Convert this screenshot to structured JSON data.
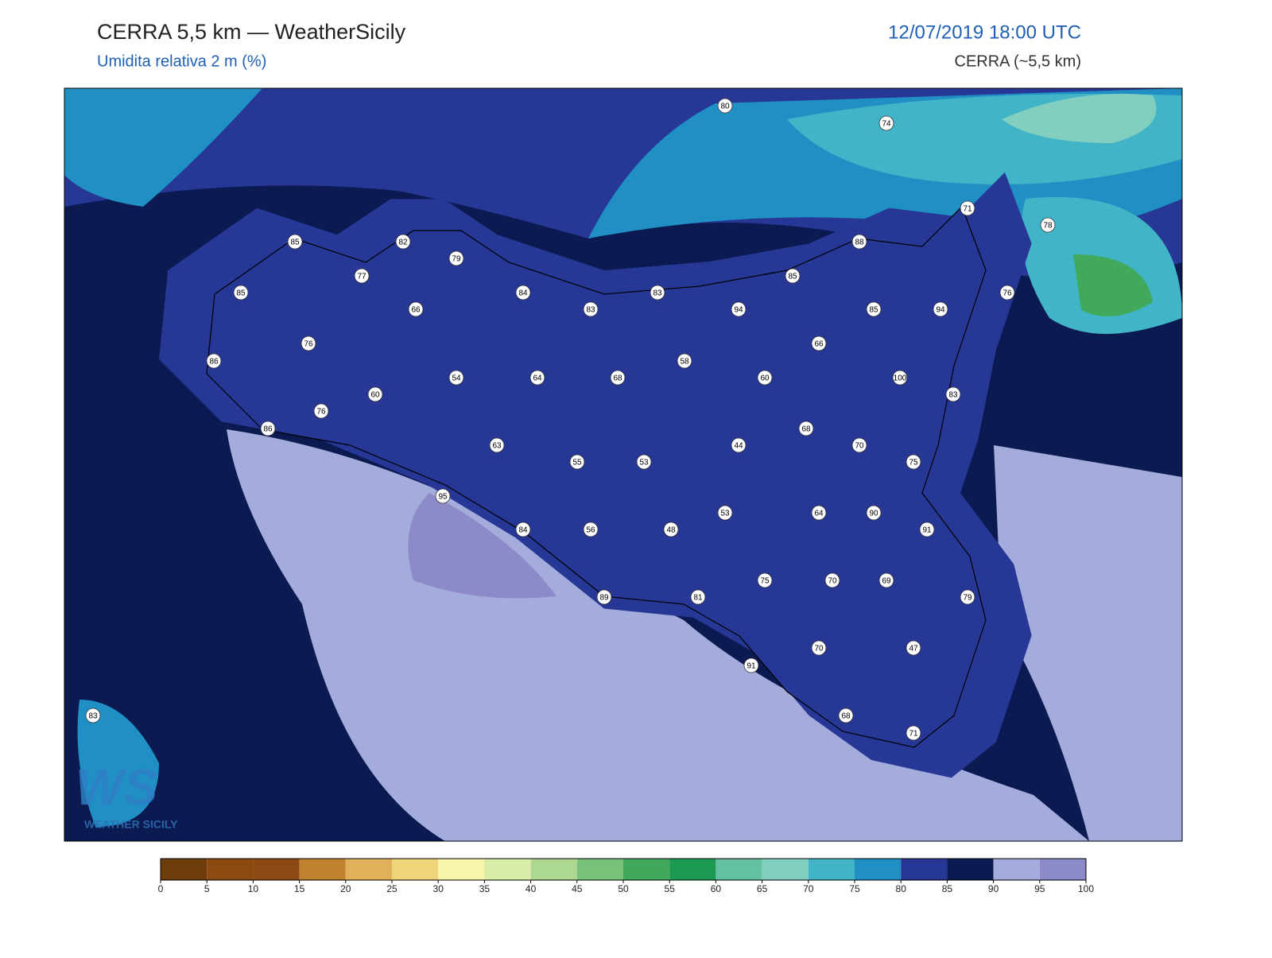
{
  "header": {
    "title": "CERRA 5,5 km — WeatherSicily",
    "subtitle": "Umidita relativa 2 m (%)",
    "datetime": "12/07/2019 18:00 UTC",
    "model": "CERRA (~5,5 km)"
  },
  "stations": [
    80,
    74,
    71,
    78,
    85,
    82,
    79,
    88,
    77,
    85,
    85,
    84,
    83,
    83,
    94,
    85,
    94,
    76,
    66,
    76,
    66,
    86,
    54,
    64,
    68,
    58,
    60,
    100,
    60,
    83,
    76,
    86,
    68,
    63,
    44,
    70,
    55,
    53,
    75,
    95,
    53,
    64,
    90,
    84,
    56,
    48,
    91,
    75,
    70,
    69,
    89,
    81,
    79,
    70,
    47,
    91,
    68,
    71,
    83
  ],
  "colorbar": {
    "ticks": [
      0,
      5,
      10,
      15,
      20,
      25,
      30,
      35,
      40,
      45,
      50,
      55,
      60,
      65,
      70,
      75,
      80,
      85,
      90,
      95,
      100
    ],
    "colors": [
      "#6e3d0a",
      "#8a4a10",
      "#8c4a12",
      "#c0832f",
      "#e0b05a",
      "#f0d47a",
      "#f7f5a8",
      "#d9eda8",
      "#acd98f",
      "#78c279",
      "#40a95c",
      "#1d9a52",
      "#63c0a0",
      "#82cfc0",
      "#41b4c8",
      "#1f8fc4",
      "#263796",
      "#0c1a52",
      "#a4acdb",
      "#8c8ac8"
    ]
  },
  "logo": {
    "mark": "WS",
    "caption": "WEATHER SICILY"
  }
}
